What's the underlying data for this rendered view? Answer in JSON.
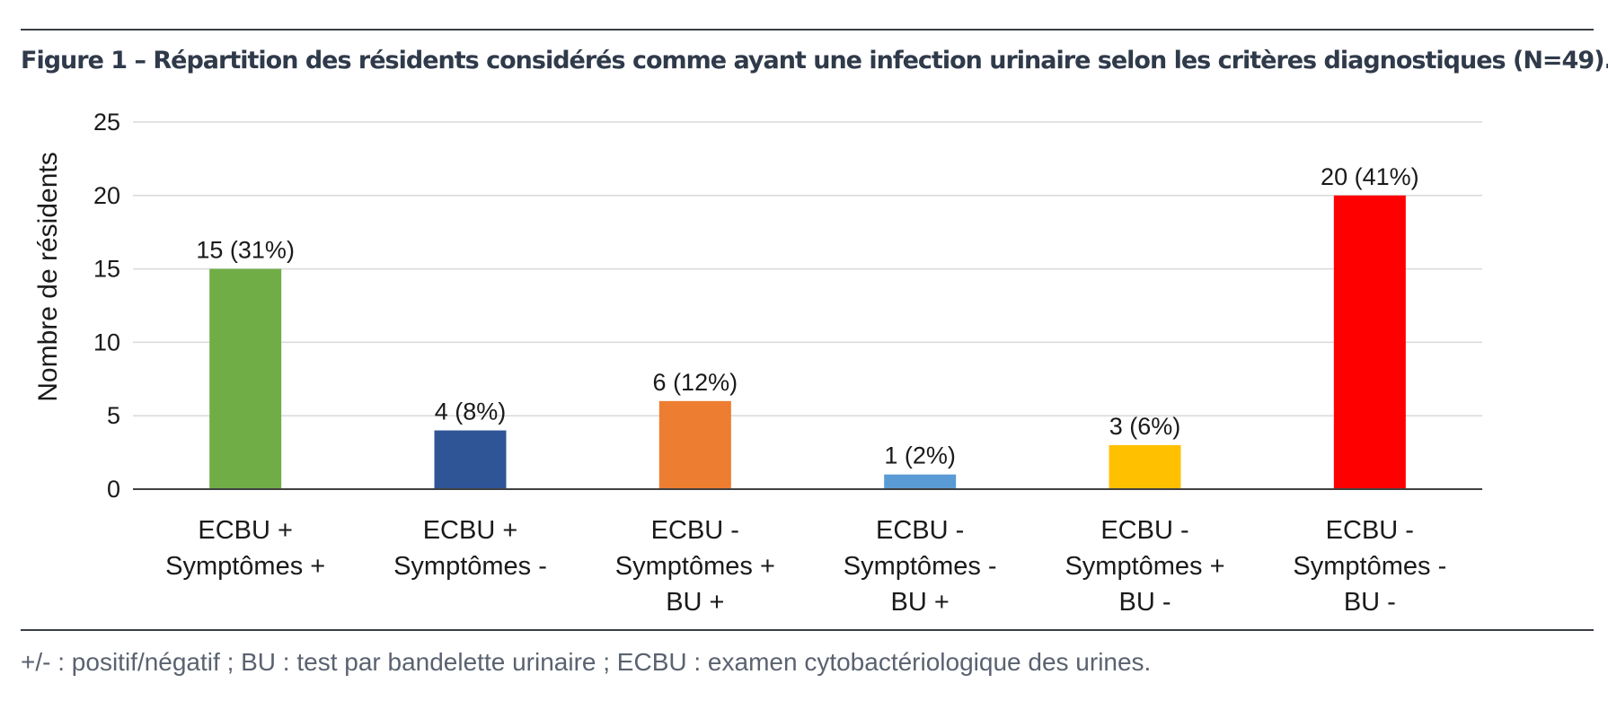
{
  "figure": {
    "title": "Figure 1 – Répartition des résidents considérés comme ayant une infection urinaire selon les critères diagnostiques (N=49).",
    "note": "+/- : positif/négatif ; BU : test par bandelette urinaire ; ECBU : examen cytobactériologique des urines."
  },
  "chart_data": {
    "type": "bar",
    "title": "",
    "xlabel": "",
    "ylabel": "Nombre de résidents",
    "ylim": [
      0,
      25
    ],
    "yticks": [
      0,
      5,
      10,
      15,
      20,
      25
    ],
    "grid": true,
    "categories": [
      [
        "ECBU +",
        "Symptômes +"
      ],
      [
        "ECBU +",
        "Symptômes -"
      ],
      [
        "ECBU -",
        "Symptômes +",
        "BU +"
      ],
      [
        "ECBU -",
        "Symptômes -",
        "BU +"
      ],
      [
        "ECBU -",
        "Symptômes +",
        "BU -"
      ],
      [
        "ECBU -",
        "Symptômes -",
        "BU -"
      ]
    ],
    "values": [
      15,
      4,
      6,
      1,
      3,
      20
    ],
    "data_labels": [
      "15 (31%)",
      "4 (8%)",
      "6 (12%)",
      "1 (2%)",
      "3 (6%)",
      "20 (41%)"
    ],
    "colors": [
      "#70ad47",
      "#2f5597",
      "#ed7d31",
      "#5b9bd5",
      "#ffc000",
      "#ff0000"
    ]
  }
}
